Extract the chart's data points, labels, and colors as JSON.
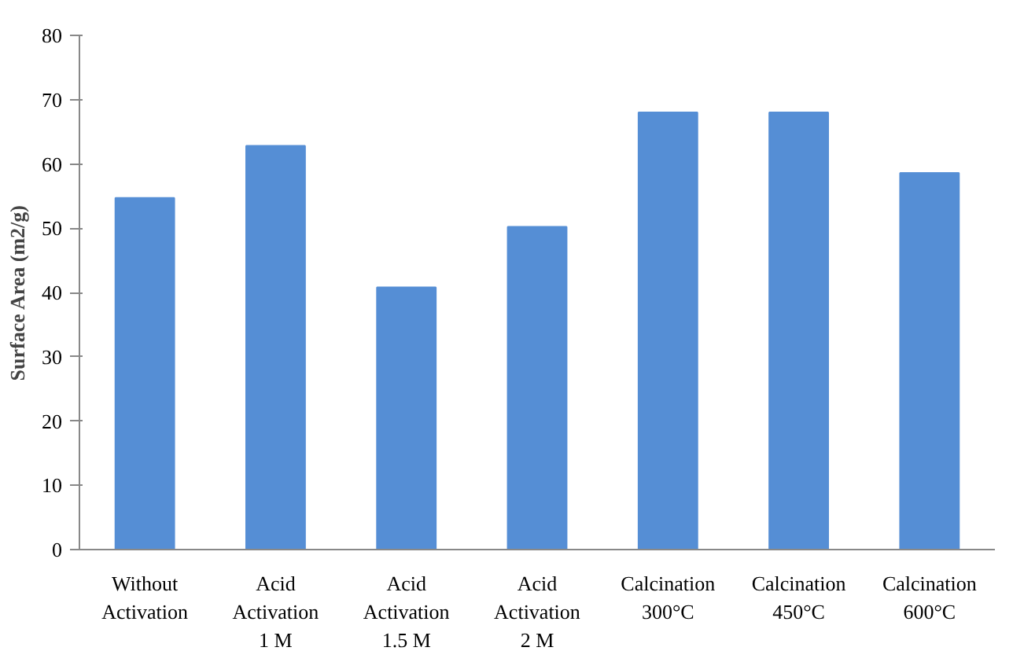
{
  "chart_data": {
    "type": "bar",
    "ylabel": "Surface Area (m2/g)",
    "categories": [
      "Without\nActivation",
      "Acid\nActivation\n1 M",
      "Acid\nActivation\n1.5 M",
      "Acid\nActivation\n2 M",
      "Calcination\n300°C",
      "Calcination\n450°C",
      "Calcination\n600°C"
    ],
    "values": [
      54.7,
      62.8,
      40.8,
      50.2,
      68.0,
      68.0,
      58.6
    ],
    "color": "#558ed5",
    "ylim": [
      0,
      80
    ],
    "yticks": [
      0,
      10,
      20,
      30,
      40,
      50,
      60,
      70,
      80
    ],
    "grid": false
  }
}
